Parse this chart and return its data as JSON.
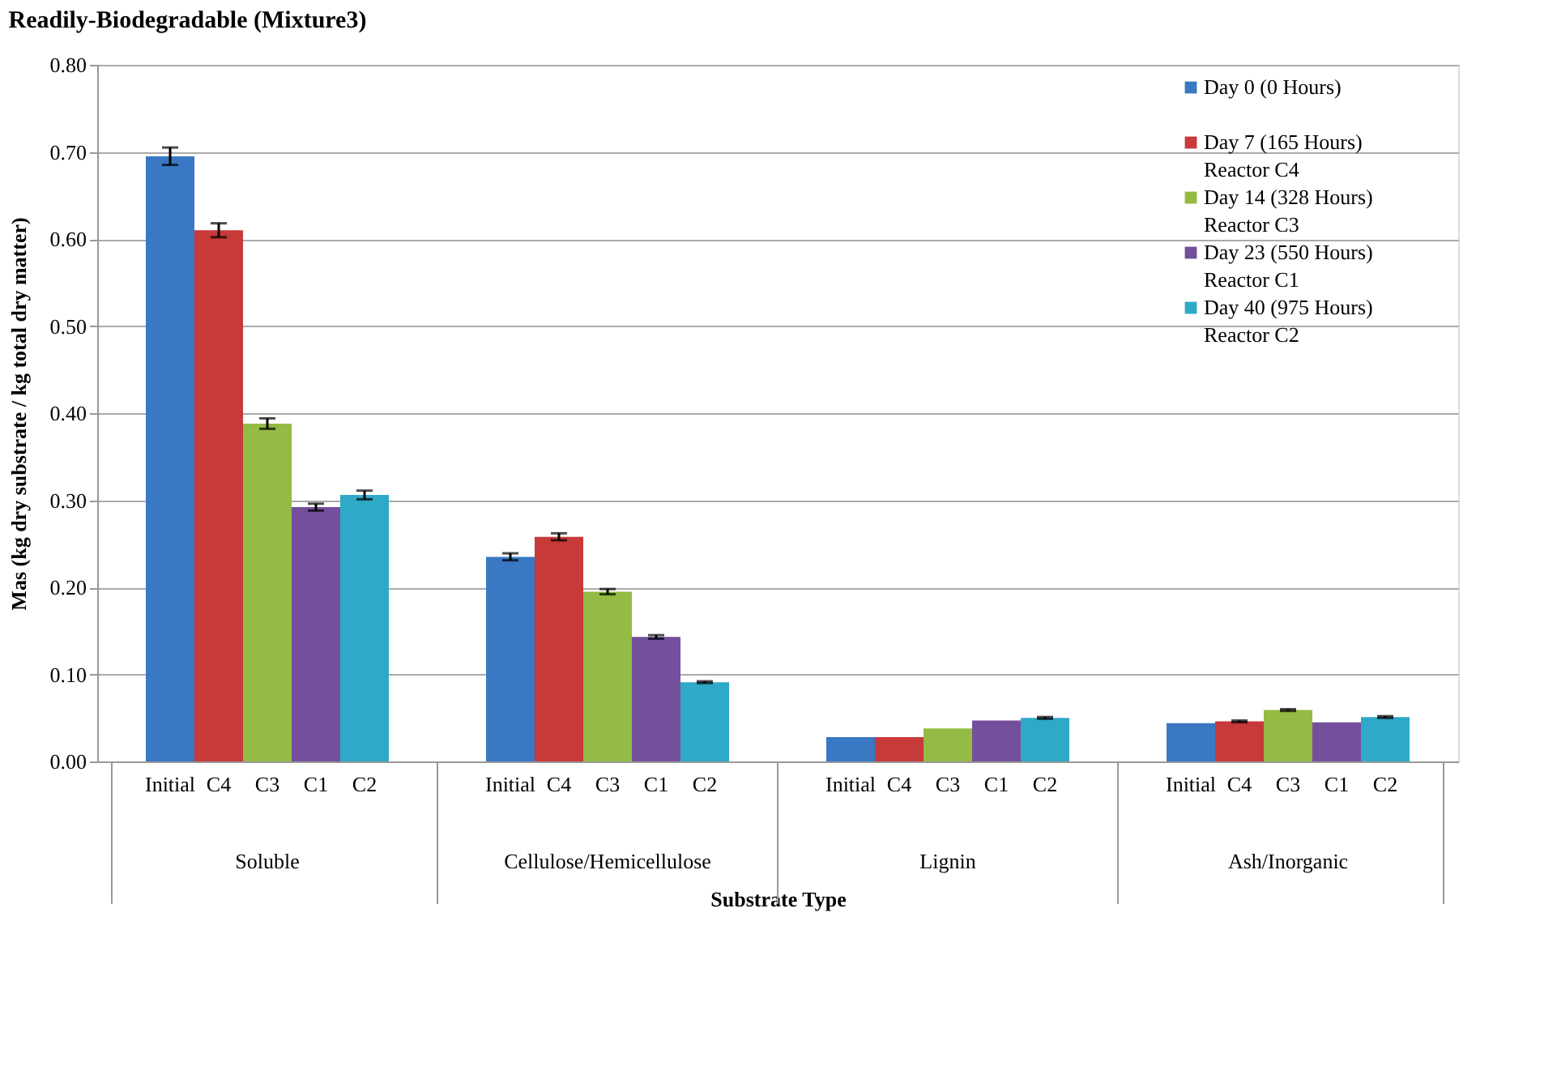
{
  "chart_data": {
    "type": "bar",
    "title": "Readily-Biodegradable (Mixture3)",
    "xlabel": "Substrate Type",
    "ylabel": "Mas (kg dry substrate / kg total dry matter)",
    "categories": [
      "Initial",
      "C4",
      "C3",
      "C1",
      "C2",
      "Initial",
      "C4",
      "C3",
      "C1",
      "C2",
      "Initial",
      "C4",
      "C3",
      "C1",
      "C2",
      "Initial",
      "C4",
      "C3",
      "C1",
      "C2"
    ],
    "series": [
      {
        "name": "Day 0 (0 Hours)",
        "color": "#3a78c4",
        "values": [
          0.695,
          null,
          null,
          null,
          null,
          0.235,
          null,
          null,
          null,
          null,
          0.028,
          null,
          null,
          null,
          null,
          0.044,
          null,
          null,
          null,
          null
        ],
        "errors": [
          0.01,
          null,
          null,
          null,
          null,
          0.004,
          null,
          null,
          null,
          null,
          null,
          null,
          null,
          null,
          null,
          null,
          null,
          null,
          null,
          null
        ]
      },
      {
        "name": "Day 7 (165 Hours)\nReactor C4",
        "color": "#c8393a",
        "values": [
          null,
          0.61,
          null,
          null,
          null,
          null,
          0.258,
          null,
          null,
          null,
          null,
          0.028,
          null,
          null,
          null,
          null,
          0.046,
          null,
          null,
          null
        ],
        "errors": [
          null,
          0.008,
          null,
          null,
          null,
          null,
          0.004,
          null,
          null,
          null,
          null,
          null,
          null,
          null,
          null,
          null,
          0.001,
          null,
          null,
          null
        ]
      },
      {
        "name": "Day 14 (328 Hours)\nReactor C3",
        "color": "#94bb44",
        "values": [
          null,
          null,
          0.388,
          null,
          null,
          null,
          null,
          0.195,
          null,
          null,
          null,
          null,
          0.038,
          null,
          null,
          null,
          null,
          0.059,
          null,
          null
        ],
        "errors": [
          null,
          null,
          0.006,
          null,
          null,
          null,
          null,
          0.003,
          null,
          null,
          null,
          null,
          null,
          null,
          null,
          null,
          null,
          0.001,
          null,
          null
        ]
      },
      {
        "name": "Day 23 (550 Hours)\nReactor C1",
        "color": "#74509c",
        "values": [
          null,
          null,
          null,
          0.292,
          null,
          null,
          null,
          null,
          0.143,
          null,
          null,
          null,
          null,
          0.047,
          null,
          null,
          null,
          null,
          0.045,
          null
        ],
        "errors": [
          null,
          null,
          null,
          0.004,
          null,
          null,
          null,
          null,
          0.002,
          null,
          null,
          null,
          null,
          null,
          null,
          null,
          null,
          null,
          null,
          null
        ]
      },
      {
        "name": "Day 40 (975 Hours)\nReactor C2",
        "color": "#2fa9c8",
        "values": [
          null,
          null,
          null,
          null,
          0.306,
          null,
          null,
          null,
          null,
          0.091,
          null,
          null,
          null,
          null,
          0.05,
          null,
          null,
          null,
          null,
          0.051
        ],
        "errors": [
          null,
          null,
          null,
          null,
          0.005,
          null,
          null,
          null,
          null,
          0.001,
          null,
          null,
          null,
          null,
          0.001,
          null,
          null,
          null,
          null,
          0.001
        ]
      }
    ],
    "annotations": [
      "Soluble",
      "Cellulose/Hemicellulose",
      "Lignin",
      "Ash/Inorganic"
    ],
    "ylim": [
      0,
      0.8
    ],
    "yticks": [
      {
        "value": 0,
        "label": "0.00"
      },
      {
        "value": 0.1,
        "label": "0.10"
      },
      {
        "value": 0.2,
        "label": "0.20"
      },
      {
        "value": 0.3,
        "label": "0.30"
      },
      {
        "value": 0.4,
        "label": "0.40"
      },
      {
        "value": 0.5,
        "label": "0.50"
      },
      {
        "value": 0.6,
        "label": "0.60"
      },
      {
        "value": 0.7,
        "label": "0.70"
      },
      {
        "value": 0.8,
        "label": "0.80"
      }
    ],
    "grid": "y",
    "legend": "top right"
  }
}
